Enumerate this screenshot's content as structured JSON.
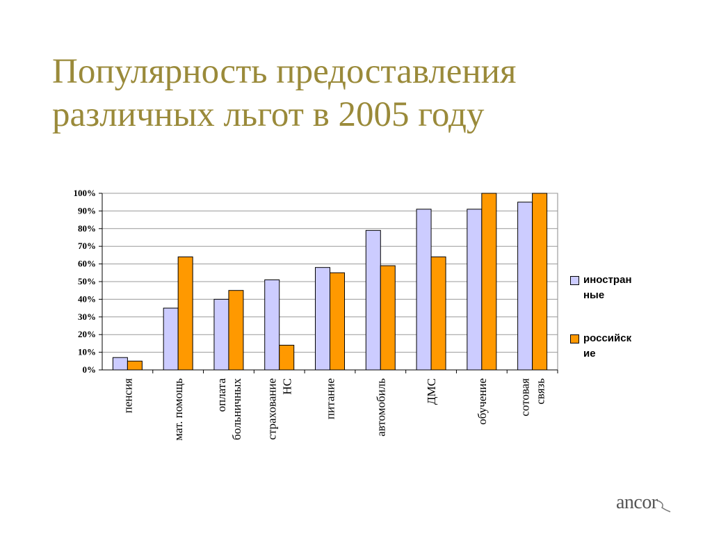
{
  "slide": {
    "title_line1": "Популярность предоставления",
    "title_line2": "различных льгот в 2005 году",
    "logo_text": "ancor"
  },
  "colors": {
    "title": "#9a8a3a",
    "series_foreign": "#ccccff",
    "series_russian": "#ff9900"
  },
  "chart_data": {
    "type": "bar",
    "categories": [
      "пенсия",
      "мат. помощь",
      "оплата больничных",
      "страхование НС",
      "питание",
      "автомобиль",
      "ДМС",
      "обучение",
      "сотовая связь"
    ],
    "category_lines": [
      [
        "пенсия"
      ],
      [
        "мат. помощь"
      ],
      [
        "оплата",
        "больничных"
      ],
      [
        "страхование",
        "НС"
      ],
      [
        "питание"
      ],
      [
        "автомобиль"
      ],
      [
        "ДМС"
      ],
      [
        "обучение"
      ],
      [
        "сотовая",
        "связь"
      ]
    ],
    "series": [
      {
        "name": "иностранные",
        "legend_lines": [
          "иностран",
          "ные"
        ],
        "color": "#ccccff",
        "values": [
          7,
          35,
          40,
          51,
          58,
          79,
          91,
          91,
          95
        ]
      },
      {
        "name": "российские",
        "legend_lines": [
          "российск",
          "ие"
        ],
        "color": "#ff9900",
        "values": [
          5,
          64,
          45,
          14,
          55,
          59,
          64,
          100,
          100
        ]
      }
    ],
    "yticks": [
      "0%",
      "10%",
      "20%",
      "30%",
      "40%",
      "50%",
      "60%",
      "70%",
      "80%",
      "90%",
      "100%"
    ],
    "ylim": [
      0,
      100
    ],
    "grid": true,
    "legend_position": "right"
  }
}
